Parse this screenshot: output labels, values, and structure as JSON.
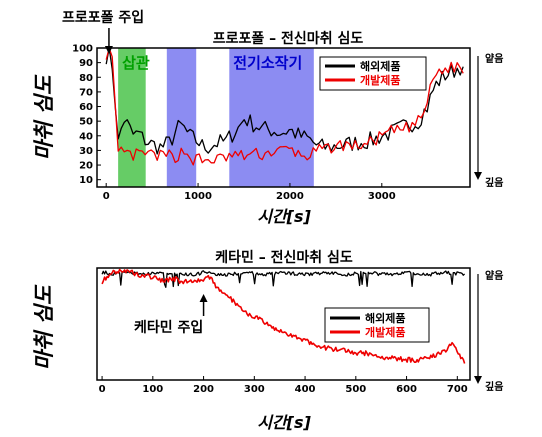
{
  "chart_data": [
    {
      "type": "line",
      "title": "프로포폴 – 전신마취 심도",
      "xlabel": "시간[s]",
      "ylabel": "마취 심도",
      "xlim": [
        -100,
        3960
      ],
      "ylim": [
        5,
        100
      ],
      "x_ticks": [
        "0",
        "1000",
        "2000",
        "3000"
      ],
      "x_tick_values": [
        0,
        1000,
        2000,
        3000
      ],
      "y_ticks": [
        "10",
        "20",
        "30",
        "40",
        "50",
        "60",
        "70",
        "80",
        "90",
        "100"
      ],
      "y_tick_values": [
        10,
        20,
        30,
        40,
        50,
        60,
        70,
        80,
        90,
        100
      ],
      "right_top_label": "얕음",
      "right_bottom_label": "깊음",
      "legend_position": "top-right",
      "injection_annotation": {
        "text": "프로포폴 주입",
        "x": 30
      },
      "regions": [
        {
          "label": "삽관",
          "start": 130,
          "end": 430,
          "color": "#33bb33",
          "text_color": "#00a000"
        },
        {
          "label": "",
          "start": 660,
          "end": 980,
          "color": "#6666ee",
          "text_color": "#0000cc"
        },
        {
          "label": "전기소작기",
          "start": 1340,
          "end": 2260,
          "color": "#6666ee",
          "text_color": "#0000cc"
        }
      ],
      "series": [
        {
          "name": "해외제품",
          "color": "#000000",
          "x": [
            0,
            30,
            60,
            100,
            130,
            150,
            200,
            250,
            300,
            350,
            400,
            450,
            500,
            600,
            700,
            750,
            800,
            850,
            900,
            950,
            1000,
            1050,
            1100,
            1200,
            1300,
            1400,
            1450,
            1500,
            1600,
            1700,
            1800,
            1900,
            2000,
            2100,
            2200,
            2300,
            2400,
            2500,
            2600,
            2700,
            2800,
            2900,
            3000,
            3100,
            3200,
            3300,
            3400,
            3450,
            3500,
            3550,
            3600,
            3700,
            3800,
            3850,
            3900
          ],
          "y": [
            95,
            97,
            92,
            62,
            35,
            42,
            52,
            45,
            40,
            42,
            38,
            36,
            34,
            32,
            36,
            42,
            47,
            45,
            40,
            38,
            36,
            33,
            32,
            35,
            36,
            43,
            46,
            52,
            48,
            45,
            44,
            42,
            44,
            40,
            38,
            33,
            32,
            33,
            34,
            35,
            36,
            37,
            40,
            42,
            45,
            48,
            50,
            56,
            60,
            70,
            76,
            82,
            85,
            88,
            80
          ]
        },
        {
          "name": "개발제품",
          "color": "#ee0000",
          "x": [
            0,
            30,
            60,
            90,
            110,
            130,
            150,
            200,
            250,
            300,
            350,
            400,
            450,
            500,
            600,
            700,
            750,
            800,
            850,
            900,
            950,
            1000,
            1050,
            1100,
            1200,
            1300,
            1400,
            1500,
            1600,
            1700,
            1800,
            1900,
            2000,
            2100,
            2200,
            2300,
            2400,
            2500,
            2600,
            2700,
            2800,
            2900,
            3000,
            3100,
            3200,
            3300,
            3400,
            3450,
            3500,
            3550,
            3600,
            3700,
            3800,
            3850,
            3900
          ],
          "y": [
            96,
            100,
            96,
            70,
            40,
            26,
            30,
            28,
            27,
            26,
            28,
            27,
            28,
            27,
            26,
            27,
            25,
            28,
            30,
            26,
            23,
            25,
            22,
            23,
            24,
            25,
            27,
            26,
            28,
            27,
            29,
            30,
            31,
            27,
            26,
            30,
            31,
            33,
            34,
            33,
            34,
            36,
            40,
            43,
            44,
            46,
            50,
            55,
            64,
            78,
            83,
            86,
            87,
            89,
            78
          ]
        }
      ]
    },
    {
      "type": "line",
      "title": "케타민 – 전신마취 심도",
      "xlabel": "시간[s]",
      "ylabel": "마취 심도",
      "xlim": [
        -10,
        725
      ],
      "ylim": [
        0,
        100
      ],
      "x_ticks": [
        "0",
        "100",
        "200",
        "300",
        "400",
        "500",
        "600",
        "700"
      ],
      "x_tick_values": [
        0,
        100,
        200,
        300,
        400,
        500,
        600,
        700
      ],
      "right_top_label": "얕음",
      "right_bottom_label": "깊음",
      "legend_position": "top-right",
      "injection_annotation": {
        "text": "케타민 주입",
        "x": 200
      },
      "series": [
        {
          "name": "해외제품",
          "color": "#000000",
          "x": [
            0,
            20,
            40,
            60,
            80,
            100,
            120,
            140,
            160,
            180,
            200,
            220,
            240,
            260,
            280,
            300,
            320,
            340,
            360,
            380,
            400,
            420,
            440,
            460,
            480,
            500,
            520,
            540,
            560,
            580,
            600,
            620,
            640,
            660,
            680,
            700,
            715
          ],
          "y": [
            96,
            95,
            95,
            96,
            94,
            96,
            95,
            94,
            95,
            94,
            96,
            95,
            94,
            95,
            96,
            95,
            94,
            95,
            96,
            95,
            94,
            95,
            96,
            95,
            94,
            95,
            96,
            95,
            94,
            95,
            96,
            95,
            94,
            95,
            96,
            95,
            94
          ]
        },
        {
          "name": "개발제품",
          "color": "#ee0000",
          "x": [
            0,
            10,
            20,
            40,
            60,
            80,
            100,
            120,
            140,
            160,
            180,
            200,
            210,
            220,
            230,
            240,
            250,
            260,
            270,
            280,
            300,
            320,
            340,
            360,
            380,
            400,
            420,
            440,
            460,
            480,
            500,
            520,
            540,
            560,
            580,
            600,
            620,
            640,
            660,
            680,
            690,
            700,
            710,
            715
          ],
          "y": [
            88,
            92,
            96,
            98,
            96,
            93,
            92,
            88,
            91,
            87,
            89,
            90,
            92,
            87,
            80,
            76,
            74,
            70,
            66,
            61,
            57,
            51,
            45,
            42,
            39,
            35,
            32,
            29,
            27,
            26,
            24,
            24,
            22,
            20,
            19,
            18,
            18,
            20,
            23,
            26,
            34,
            27,
            18,
            15
          ]
        }
      ]
    }
  ]
}
